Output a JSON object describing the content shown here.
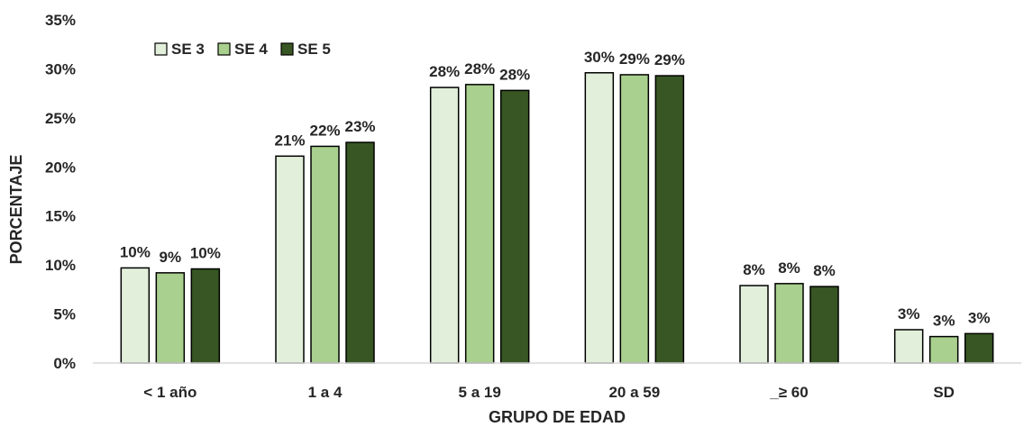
{
  "chart_data": {
    "type": "bar",
    "title": "",
    "xlabel": "GRUPO DE EDAD",
    "ylabel": "PORCENTAJE",
    "ylim": [
      0,
      35
    ],
    "yticks": [
      "0%",
      "5%",
      "10%",
      "15%",
      "20%",
      "25%",
      "30%",
      "35%"
    ],
    "grid": false,
    "legend_position": "top-left",
    "categories": [
      "< 1 año",
      "1 a 4",
      "5 a 19",
      "20 a 59",
      "_≥ 60",
      "SD"
    ],
    "series": [
      {
        "name": "SE 3",
        "color": "#e2efda",
        "values": [
          9.7,
          21.1,
          28.1,
          29.6,
          7.9,
          3.4
        ],
        "labels": [
          "10%",
          "21%",
          "28%",
          "30%",
          "8%",
          "3%"
        ]
      },
      {
        "name": "SE 4",
        "color": "#a9d08e",
        "values": [
          9.2,
          22.1,
          28.4,
          29.4,
          8.1,
          2.7
        ],
        "labels": [
          "9%",
          "22%",
          "28%",
          "29%",
          "8%",
          "3%"
        ]
      },
      {
        "name": "SE 5",
        "color": "#375623",
        "values": [
          9.6,
          22.5,
          27.8,
          29.3,
          7.8,
          3.0
        ],
        "labels": [
          "10%",
          "23%",
          "28%",
          "29%",
          "8%",
          "3%"
        ]
      }
    ]
  }
}
